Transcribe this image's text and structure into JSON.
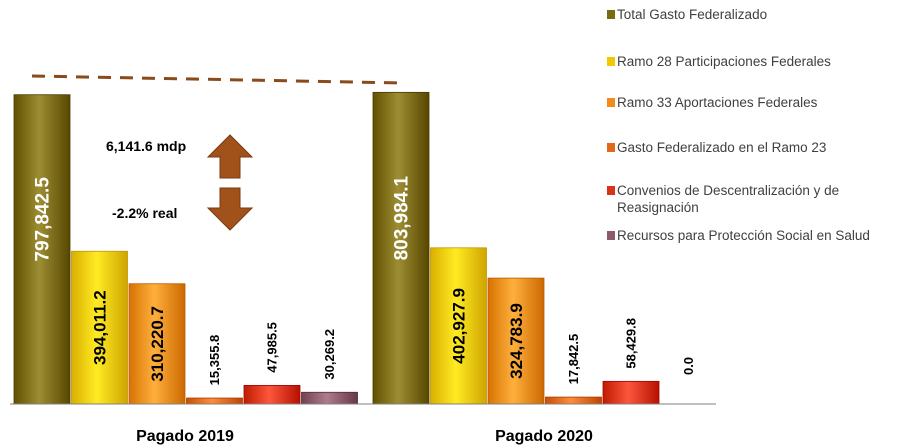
{
  "chart_data": {
    "type": "bar",
    "categories": [
      "Pagado 2019",
      "Pagado 2020"
    ],
    "series": [
      {
        "name": "Total Gasto Federalizado",
        "color": "#7a6a10",
        "values": [
          797842.5,
          803984.1
        ],
        "labels": [
          "797,842.5",
          "803,984.1"
        ]
      },
      {
        "name": "Ramo 28 Participaciones Federales",
        "color": "#f2c800",
        "values": [
          394011.2,
          402927.9
        ],
        "labels": [
          "394,011.2",
          "402,927.9"
        ]
      },
      {
        "name": "Ramo 33 Aportaciones Federales",
        "color": "#ef8c1a",
        "values": [
          310220.7,
          324783.9
        ],
        "labels": [
          "310,220.7",
          "324,783.9"
        ]
      },
      {
        "name": "Gasto Federalizado en el Ramo 23",
        "color": "#e0691a",
        "values": [
          15355.8,
          17842.5
        ],
        "labels": [
          "15,355.8",
          "17,842.5"
        ]
      },
      {
        "name": "Convenios de Descentralización y de Reasignación",
        "color": "#d9341a",
        "values": [
          47985.5,
          58429.8
        ],
        "labels": [
          "47,985.5",
          "58,429.8"
        ]
      },
      {
        "name": "Recursos para Protección Social en Salud",
        "color": "#8a5a6a",
        "values": [
          30269.2,
          0.0
        ],
        "labels": [
          "30,269.2",
          "0.0"
        ]
      }
    ],
    "ylim": [
      0,
      830000
    ],
    "legend_position": "right",
    "annotations": {
      "up": "6,141.6 mdp",
      "down": "-2.2% real"
    }
  }
}
